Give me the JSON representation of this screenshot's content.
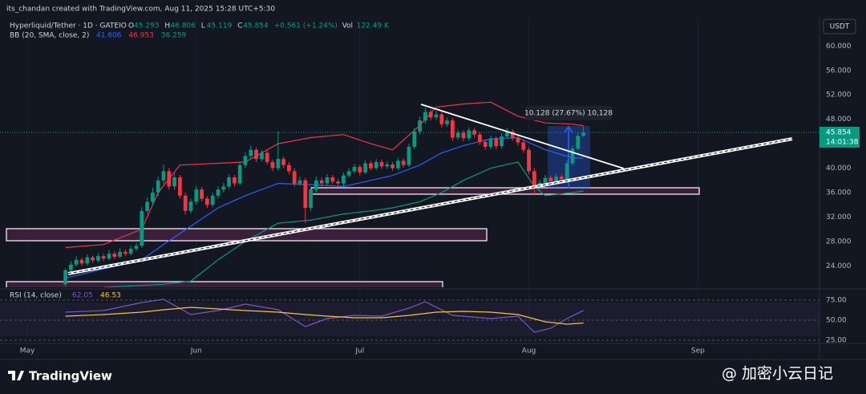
{
  "header": {
    "credit": "its_chandan created with TradingView.com, Aug 11, 2025 15:28 UTC+5:30",
    "symbol": "Hyperliquid/Tether · 1D · GATEIO",
    "ohlc_prefixes": [
      "O",
      "H",
      "L",
      "C"
    ],
    "change": "+0.561 (+1.24%)",
    "volume_prefix": "Vol",
    "volume": "122.49 K",
    "bb_label": "BB (20, SMA, close, 2)",
    "currency": "USDT"
  },
  "footer": {
    "brand": "TradingView",
    "watermark": "@ 加密小云日记"
  },
  "chart_data": {
    "type": "candlestick",
    "up_color": "#089981",
    "down_color": "#f23645",
    "grid": true,
    "xlim": [
      -5,
      145.3
    ],
    "xticks": [
      {
        "value": 0,
        "label": "May"
      },
      {
        "value": 31,
        "label": "Jun"
      },
      {
        "value": 61,
        "label": "Jul"
      },
      {
        "value": 92,
        "label": "Aug"
      },
      {
        "value": 123,
        "label": "Sep"
      }
    ],
    "ylim": [
      20.5,
      64.9
    ],
    "yticks": [
      {
        "value": 24,
        "label": "24.000"
      },
      {
        "value": 28,
        "label": "28.000"
      },
      {
        "value": 32,
        "label": "32.000"
      },
      {
        "value": 36,
        "label": "36.000"
      },
      {
        "value": 40,
        "label": "40.000"
      },
      {
        "value": 44,
        "label": "44.000"
      },
      {
        "value": 48,
        "label": "48.000"
      },
      {
        "value": 52,
        "label": "52.000"
      },
      {
        "value": 56,
        "label": "56.000"
      },
      {
        "value": 60,
        "label": "60.000"
      }
    ],
    "x": [
      7,
      8,
      9,
      10,
      11,
      12,
      13,
      14,
      15,
      16,
      17,
      18,
      19,
      20,
      21,
      22,
      23,
      24,
      25,
      26,
      27,
      28,
      29,
      30,
      31,
      32,
      33,
      34,
      35,
      36,
      37,
      38,
      39,
      40,
      41,
      42,
      43,
      44,
      45,
      46,
      47,
      48,
      49,
      50,
      51,
      52,
      53,
      54,
      55,
      56,
      57,
      58,
      59,
      60,
      61,
      62,
      63,
      64,
      65,
      66,
      67,
      68,
      69,
      70,
      71,
      72,
      73,
      74,
      75,
      76,
      77,
      78,
      79,
      80,
      81,
      82,
      83,
      84,
      85,
      86,
      87,
      88,
      89,
      90,
      91,
      92,
      93,
      94,
      95,
      96,
      97,
      98,
      99,
      100,
      101,
      102
    ],
    "candles": [
      [
        21.0,
        23.6,
        20.6,
        23.3
      ],
      [
        23.3,
        24.8,
        23.0,
        24.2
      ],
      [
        24.2,
        25.6,
        23.9,
        25.0
      ],
      [
        25.0,
        25.4,
        24.0,
        24.4
      ],
      [
        24.4,
        25.9,
        24.1,
        25.4
      ],
      [
        25.4,
        25.7,
        24.5,
        24.9
      ],
      [
        24.9,
        26.1,
        24.6,
        25.6
      ],
      [
        25.6,
        26.0,
        24.8,
        25.2
      ],
      [
        25.2,
        26.6,
        24.9,
        26.0
      ],
      [
        26.0,
        26.4,
        25.1,
        25.5
      ],
      [
        25.5,
        26.9,
        25.2,
        26.3
      ],
      [
        26.3,
        26.7,
        25.6,
        26.0
      ],
      [
        26.0,
        27.3,
        25.7,
        26.8
      ],
      [
        26.8,
        27.8,
        26.4,
        27.3
      ],
      [
        27.3,
        33.6,
        27.0,
        33.0
      ],
      [
        33.0,
        35.2,
        32.5,
        34.5
      ],
      [
        34.5,
        36.8,
        34.0,
        36.0
      ],
      [
        36.0,
        38.6,
        35.4,
        38.0
      ],
      [
        38.0,
        40.6,
        37.4,
        39.5
      ],
      [
        39.5,
        40.0,
        36.5,
        37.0
      ],
      [
        37.0,
        39.2,
        36.4,
        38.5
      ],
      [
        38.5,
        38.9,
        35.0,
        35.5
      ],
      [
        35.5,
        36.0,
        32.4,
        33.0
      ],
      [
        33.0,
        35.0,
        32.6,
        34.5
      ],
      [
        34.5,
        37.1,
        34.0,
        36.5
      ],
      [
        36.5,
        36.9,
        34.6,
        35.0
      ],
      [
        35.0,
        35.4,
        33.5,
        34.0
      ],
      [
        34.0,
        36.0,
        33.6,
        35.5
      ],
      [
        35.5,
        37.0,
        35.0,
        36.5
      ],
      [
        36.5,
        37.6,
        36.0,
        37.0
      ],
      [
        37.0,
        39.0,
        36.6,
        38.5
      ],
      [
        38.5,
        38.9,
        37.0,
        37.5
      ],
      [
        37.5,
        41.0,
        37.2,
        40.5
      ],
      [
        40.5,
        42.6,
        40.0,
        42.0
      ],
      [
        42.0,
        43.7,
        41.5,
        43.0
      ],
      [
        43.0,
        43.4,
        41.0,
        41.5
      ],
      [
        41.5,
        43.0,
        41.1,
        42.5
      ],
      [
        42.5,
        42.9,
        40.6,
        41.0
      ],
      [
        41.0,
        41.4,
        39.5,
        40.0
      ],
      [
        40.0,
        46.0,
        39.6,
        41.5
      ],
      [
        41.5,
        41.9,
        40.0,
        40.5
      ],
      [
        40.5,
        41.0,
        39.0,
        39.5
      ],
      [
        39.5,
        40.0,
        37.0,
        37.5
      ],
      [
        37.5,
        38.6,
        37.1,
        38.0
      ],
      [
        38.0,
        38.4,
        31.0,
        33.5
      ],
      [
        33.5,
        37.0,
        33.0,
        36.5
      ],
      [
        36.5,
        38.6,
        36.0,
        38.0
      ],
      [
        38.0,
        38.5,
        37.0,
        37.5
      ],
      [
        37.5,
        39.0,
        37.1,
        38.5
      ],
      [
        38.5,
        38.9,
        37.3,
        37.8
      ],
      [
        37.8,
        38.2,
        37.0,
        37.5
      ],
      [
        37.5,
        39.3,
        37.1,
        38.8
      ],
      [
        38.8,
        40.0,
        38.4,
        39.5
      ],
      [
        39.5,
        40.7,
        39.1,
        40.2
      ],
      [
        40.2,
        40.6,
        38.8,
        39.3
      ],
      [
        39.3,
        41.3,
        39.0,
        40.8
      ],
      [
        40.8,
        41.2,
        39.6,
        40.0
      ],
      [
        40.0,
        41.5,
        39.7,
        41.0
      ],
      [
        41.0,
        41.4,
        39.9,
        40.3
      ],
      [
        40.3,
        41.1,
        39.9,
        40.6
      ],
      [
        40.6,
        41.0,
        39.6,
        40.0
      ],
      [
        40.0,
        41.7,
        39.7,
        41.2
      ],
      [
        41.2,
        41.6,
        40.1,
        40.5
      ],
      [
        40.5,
        44.0,
        40.2,
        43.5
      ],
      [
        43.5,
        46.6,
        43.1,
        46.0
      ],
      [
        46.0,
        48.4,
        45.5,
        47.8
      ],
      [
        47.8,
        49.9,
        47.3,
        49.2
      ],
      [
        49.2,
        49.6,
        47.8,
        48.3
      ],
      [
        48.3,
        49.4,
        47.9,
        48.8
      ],
      [
        48.8,
        49.2,
        46.7,
        47.2
      ],
      [
        47.2,
        48.3,
        46.8,
        47.8
      ],
      [
        47.8,
        48.2,
        44.5,
        45.0
      ],
      [
        45.0,
        46.3,
        44.6,
        45.8
      ],
      [
        45.8,
        46.2,
        44.4,
        44.9
      ],
      [
        44.9,
        46.7,
        44.5,
        46.2
      ],
      [
        46.2,
        46.6,
        45.0,
        45.5
      ],
      [
        45.5,
        45.9,
        43.8,
        44.3
      ],
      [
        44.3,
        44.7,
        43.0,
        43.5
      ],
      [
        43.5,
        45.3,
        43.1,
        44.8
      ],
      [
        44.8,
        45.2,
        43.1,
        43.6
      ],
      [
        43.6,
        45.7,
        43.2,
        45.2
      ],
      [
        45.2,
        46.6,
        44.8,
        46.0
      ],
      [
        46.0,
        46.4,
        44.5,
        45.0
      ],
      [
        45.0,
        45.4,
        43.7,
        44.2
      ],
      [
        44.2,
        44.6,
        42.5,
        43.0
      ],
      [
        43.0,
        43.4,
        39.0,
        39.5
      ],
      [
        39.5,
        40.0,
        35.6,
        36.8
      ],
      [
        36.8,
        38.1,
        36.3,
        37.6
      ],
      [
        37.6,
        38.9,
        37.2,
        38.4
      ],
      [
        38.4,
        38.8,
        37.4,
        37.9
      ],
      [
        37.9,
        39.1,
        37.5,
        38.6
      ],
      [
        38.6,
        39.0,
        37.7,
        38.2
      ],
      [
        38.2,
        41.3,
        37.9,
        40.8
      ],
      [
        40.8,
        43.7,
        40.4,
        43.2
      ],
      [
        43.2,
        45.8,
        42.9,
        45.293
      ],
      [
        45.293,
        46.806,
        45.119,
        45.854
      ]
    ],
    "series": [
      {
        "color": "#2962ff",
        "x": [
          7,
          14,
          21,
          25,
          30,
          35,
          40,
          46,
          52,
          58,
          63,
          67,
          72,
          76,
          80,
          85,
          90,
          95,
          100,
          102
        ],
        "values": [
          22,
          23.5,
          25,
          27.5,
          30.5,
          33.5,
          35.5,
          37.5,
          37.3,
          37.0,
          38.0,
          38.8,
          40.5,
          42.5,
          43.7,
          44.8,
          45.0,
          43.0,
          41.7,
          41.606
        ]
      },
      {
        "color": "#f23645",
        "x": [
          7,
          14,
          21,
          24,
          28,
          35,
          40,
          46,
          52,
          58,
          63,
          67,
          72,
          75,
          80,
          85,
          90,
          95,
          100,
          102
        ],
        "values": [
          27,
          27.5,
          30,
          36,
          40.5,
          40.8,
          41,
          44,
          45,
          45.5,
          44,
          43,
          47,
          50,
          50.5,
          50.8,
          48.5,
          47.4,
          47.2,
          46.953
        ]
      },
      {
        "color": "#089981",
        "x": [
          14,
          21,
          25,
          30,
          35,
          40,
          46,
          52,
          58,
          63,
          67,
          72,
          76,
          80,
          85,
          90,
          93,
          95,
          100,
          102
        ],
        "values": [
          20.5,
          20.8,
          21.0,
          21.5,
          25,
          28,
          31,
          31.5,
          32.5,
          33.0,
          33.5,
          34.5,
          36,
          38,
          40,
          41,
          37,
          35.5,
          36.0,
          36.259
        ]
      }
    ],
    "current_price": {
      "value": 45.854,
      "countdown": "14:01:38"
    },
    "measure_label": "10.128 (27.67%) 10,128",
    "rsi": {
      "title": "RSI (14, close)",
      "ylim": [
        21,
        84
      ],
      "yticks": [
        {
          "value": 25,
          "label": "25.00"
        },
        {
          "value": 50,
          "label": "50.00"
        },
        {
          "value": 75,
          "label": "75.00"
        }
      ],
      "series": [
        {
          "color": "#7e57c2",
          "x": [
            7,
            14,
            21,
            25,
            30,
            35,
            40,
            46,
            51,
            55,
            60,
            65,
            70,
            73,
            78,
            85,
            90,
            93,
            96,
            99,
            102
          ],
          "values": [
            60,
            62,
            72,
            76,
            57,
            62,
            70,
            63,
            42,
            52,
            56,
            55,
            65,
            73,
            56,
            52,
            55,
            35,
            40,
            52,
            62.05
          ]
        },
        {
          "color": "#f7c531",
          "x": [
            7,
            14,
            21,
            25,
            30,
            35,
            40,
            46,
            51,
            55,
            60,
            65,
            70,
            75,
            80,
            85,
            90,
            95,
            99,
            102
          ],
          "values": [
            55,
            57,
            60,
            63,
            66,
            64,
            62,
            60,
            57,
            55,
            53,
            53,
            56,
            60,
            61,
            60,
            57,
            48,
            45,
            46.53
          ]
        }
      ]
    }
  }
}
